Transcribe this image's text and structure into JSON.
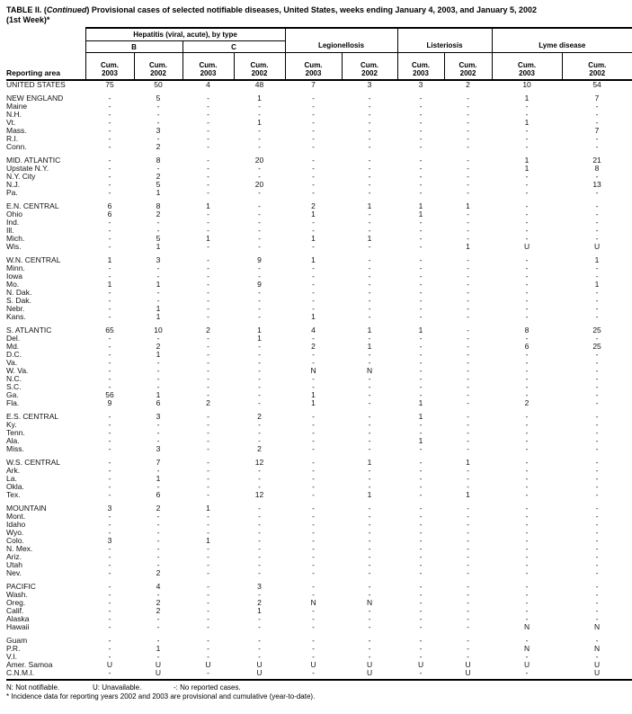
{
  "title": {
    "prefix": "TABLE II. (",
    "continued": "Continued",
    "suffix": ") Provisional cases of selected notifiable diseases, United States, weeks ending January 4, 2003, and January 5, 2002",
    "line2": "(1st Week)*"
  },
  "table": {
    "reporting_area_label": "Reporting area",
    "hepatitis_group": {
      "label": "Hepatitis (viral, acute), by type",
      "subtypes": [
        "B",
        "C"
      ]
    },
    "disease_groups": [
      "Legionellosis",
      "Listeriosis",
      "Lyme disease"
    ],
    "columns": [
      {
        "line1": "Cum.",
        "line2": "2003"
      },
      {
        "line1": "Cum.",
        "line2": "2002"
      },
      {
        "line1": "Cum.",
        "line2": "2003"
      },
      {
        "line1": "Cum.",
        "line2": "2002"
      },
      {
        "line1": "Cum.",
        "line2": "2003"
      },
      {
        "line1": "Cum.",
        "line2": "2002"
      },
      {
        "line1": "Cum.",
        "line2": "2003"
      },
      {
        "line1": "Cum.",
        "line2": "2002"
      },
      {
        "line1": "Cum.",
        "line2": "2003"
      },
      {
        "line1": "Cum.",
        "line2": "2002"
      }
    ],
    "rows": [
      {
        "area": "UNITED STATES",
        "gap_before": false,
        "values": [
          "75",
          "50",
          "4",
          "48",
          "7",
          "3",
          "3",
          "2",
          "10",
          "54"
        ]
      },
      {
        "area": "NEW ENGLAND",
        "gap_before": true,
        "values": [
          "-",
          "5",
          "-",
          "1",
          "-",
          "-",
          "-",
          "-",
          "1",
          "7"
        ]
      },
      {
        "area": "Maine",
        "gap_before": false,
        "values": [
          "-",
          "-",
          "-",
          "-",
          "-",
          "-",
          "-",
          "-",
          "-",
          "-"
        ]
      },
      {
        "area": "N.H.",
        "gap_before": false,
        "values": [
          "-",
          "-",
          "-",
          "-",
          "-",
          "-",
          "-",
          "-",
          "-",
          "-"
        ]
      },
      {
        "area": "Vt.",
        "gap_before": false,
        "values": [
          "-",
          "-",
          "-",
          "1",
          "-",
          "-",
          "-",
          "-",
          "1",
          "-"
        ]
      },
      {
        "area": "Mass.",
        "gap_before": false,
        "values": [
          "-",
          "3",
          "-",
          "-",
          "-",
          "-",
          "-",
          "-",
          "-",
          "7"
        ]
      },
      {
        "area": "R.I.",
        "gap_before": false,
        "values": [
          "-",
          "-",
          "-",
          "-",
          "-",
          "-",
          "-",
          "-",
          "-",
          "-"
        ]
      },
      {
        "area": "Conn.",
        "gap_before": false,
        "values": [
          "-",
          "2",
          "-",
          "-",
          "-",
          "-",
          "-",
          "-",
          "-",
          "-"
        ]
      },
      {
        "area": "MID. ATLANTIC",
        "gap_before": true,
        "values": [
          "-",
          "8",
          "-",
          "20",
          "-",
          "-",
          "-",
          "-",
          "1",
          "21"
        ]
      },
      {
        "area": "Upstate N.Y.",
        "gap_before": false,
        "values": [
          "-",
          "-",
          "-",
          "-",
          "-",
          "-",
          "-",
          "-",
          "1",
          "8"
        ]
      },
      {
        "area": "N.Y. City",
        "gap_before": false,
        "values": [
          "-",
          "2",
          "-",
          "-",
          "-",
          "-",
          "-",
          "-",
          "-",
          "-"
        ]
      },
      {
        "area": "N.J.",
        "gap_before": false,
        "values": [
          "-",
          "5",
          "-",
          "20",
          "-",
          "-",
          "-",
          "-",
          "-",
          "13"
        ]
      },
      {
        "area": "Pa.",
        "gap_before": false,
        "values": [
          "-",
          "1",
          "-",
          "-",
          "-",
          "-",
          "-",
          "-",
          "-",
          "-"
        ]
      },
      {
        "area": "E.N. CENTRAL",
        "gap_before": true,
        "values": [
          "6",
          "8",
          "1",
          "-",
          "2",
          "1",
          "1",
          "1",
          "-",
          "-"
        ]
      },
      {
        "area": "Ohio",
        "gap_before": false,
        "values": [
          "6",
          "2",
          "-",
          "-",
          "1",
          "-",
          "1",
          "-",
          "-",
          "-"
        ]
      },
      {
        "area": "Ind.",
        "gap_before": false,
        "values": [
          "-",
          "-",
          "-",
          "-",
          "-",
          "-",
          "-",
          "-",
          "-",
          "-"
        ]
      },
      {
        "area": "Ill.",
        "gap_before": false,
        "values": [
          "-",
          "-",
          "-",
          "-",
          "-",
          "-",
          "-",
          "-",
          "-",
          "-"
        ]
      },
      {
        "area": "Mich.",
        "gap_before": false,
        "values": [
          "-",
          "5",
          "1",
          "-",
          "1",
          "1",
          "-",
          "-",
          "-",
          "-"
        ]
      },
      {
        "area": "Wis.",
        "gap_before": false,
        "values": [
          "-",
          "1",
          "-",
          "-",
          "-",
          "-",
          "-",
          "1",
          "U",
          "U"
        ]
      },
      {
        "area": "W.N. CENTRAL",
        "gap_before": true,
        "values": [
          "1",
          "3",
          "-",
          "9",
          "1",
          "-",
          "-",
          "-",
          "-",
          "1"
        ]
      },
      {
        "area": "Minn.",
        "gap_before": false,
        "values": [
          "-",
          "-",
          "-",
          "-",
          "-",
          "-",
          "-",
          "-",
          "-",
          "-"
        ]
      },
      {
        "area": "Iowa",
        "gap_before": false,
        "values": [
          "-",
          "-",
          "-",
          "-",
          "-",
          "-",
          "-",
          "-",
          "-",
          "-"
        ]
      },
      {
        "area": "Mo.",
        "gap_before": false,
        "values": [
          "1",
          "1",
          "-",
          "9",
          "-",
          "-",
          "-",
          "-",
          "-",
          "1"
        ]
      },
      {
        "area": "N. Dak.",
        "gap_before": false,
        "values": [
          "-",
          "-",
          "-",
          "-",
          "-",
          "-",
          "-",
          "-",
          "-",
          "-"
        ]
      },
      {
        "area": "S. Dak.",
        "gap_before": false,
        "values": [
          "-",
          "-",
          "-",
          "-",
          "-",
          "-",
          "-",
          "-",
          "-",
          "-"
        ]
      },
      {
        "area": "Nebr.",
        "gap_before": false,
        "values": [
          "-",
          "1",
          "-",
          "-",
          "-",
          "-",
          "-",
          "-",
          "-",
          "-"
        ]
      },
      {
        "area": "Kans.",
        "gap_before": false,
        "values": [
          "-",
          "1",
          "-",
          "-",
          "1",
          "-",
          "-",
          "-",
          "-",
          "-"
        ]
      },
      {
        "area": "S. ATLANTIC",
        "gap_before": true,
        "values": [
          "65",
          "10",
          "2",
          "1",
          "4",
          "1",
          "1",
          "-",
          "8",
          "25"
        ]
      },
      {
        "area": "Del.",
        "gap_before": false,
        "values": [
          "-",
          "-",
          "-",
          "1",
          "-",
          "-",
          "-",
          "-",
          "-",
          "-"
        ]
      },
      {
        "area": "Md.",
        "gap_before": false,
        "values": [
          "-",
          "2",
          "-",
          "-",
          "2",
          "1",
          "-",
          "-",
          "6",
          "25"
        ]
      },
      {
        "area": "D.C.",
        "gap_before": false,
        "values": [
          "-",
          "1",
          "-",
          "-",
          "-",
          "-",
          "-",
          "-",
          "-",
          "-"
        ]
      },
      {
        "area": "Va.",
        "gap_before": false,
        "values": [
          "-",
          "-",
          "-",
          "-",
          "-",
          "-",
          "-",
          "-",
          "-",
          "-"
        ]
      },
      {
        "area": "W. Va.",
        "gap_before": false,
        "values": [
          "-",
          "-",
          "-",
          "-",
          "N",
          "N",
          "-",
          "-",
          "-",
          "-"
        ]
      },
      {
        "area": "N.C.",
        "gap_before": false,
        "values": [
          "-",
          "-",
          "-",
          "-",
          "-",
          "-",
          "-",
          "-",
          "-",
          "-"
        ]
      },
      {
        "area": "S.C.",
        "gap_before": false,
        "values": [
          "-",
          "-",
          "-",
          "-",
          "-",
          "-",
          "-",
          "-",
          "-",
          "-"
        ]
      },
      {
        "area": "Ga.",
        "gap_before": false,
        "values": [
          "56",
          "1",
          "-",
          "-",
          "1",
          "-",
          "-",
          "-",
          "-",
          "-"
        ]
      },
      {
        "area": "Fla.",
        "gap_before": false,
        "values": [
          "9",
          "6",
          "2",
          "-",
          "1",
          "-",
          "1",
          "-",
          "2",
          "-"
        ]
      },
      {
        "area": "E.S. CENTRAL",
        "gap_before": true,
        "values": [
          "-",
          "3",
          "-",
          "2",
          "-",
          "-",
          "1",
          "-",
          "-",
          "-"
        ]
      },
      {
        "area": "Ky.",
        "gap_before": false,
        "values": [
          "-",
          "-",
          "-",
          "-",
          "-",
          "-",
          "-",
          "-",
          "-",
          "-"
        ]
      },
      {
        "area": "Tenn.",
        "gap_before": false,
        "values": [
          "-",
          "-",
          "-",
          "-",
          "-",
          "-",
          "-",
          "-",
          "-",
          "-"
        ]
      },
      {
        "area": "Ala.",
        "gap_before": false,
        "values": [
          "-",
          "-",
          "-",
          "-",
          "-",
          "-",
          "1",
          "-",
          "-",
          "-"
        ]
      },
      {
        "area": "Miss.",
        "gap_before": false,
        "values": [
          "-",
          "3",
          "-",
          "2",
          "-",
          "-",
          "-",
          "-",
          "-",
          "-"
        ]
      },
      {
        "area": "W.S. CENTRAL",
        "gap_before": true,
        "values": [
          "-",
          "7",
          "-",
          "12",
          "-",
          "1",
          "-",
          "1",
          "-",
          "-"
        ]
      },
      {
        "area": "Ark.",
        "gap_before": false,
        "values": [
          "-",
          "-",
          "-",
          "-",
          "-",
          "-",
          "-",
          "-",
          "-",
          "-"
        ]
      },
      {
        "area": "La.",
        "gap_before": false,
        "values": [
          "-",
          "1",
          "-",
          "-",
          "-",
          "-",
          "-",
          "-",
          "-",
          "-"
        ]
      },
      {
        "area": "Okla.",
        "gap_before": false,
        "values": [
          "-",
          "-",
          "-",
          "-",
          "-",
          "-",
          "-",
          "-",
          "-",
          "-"
        ]
      },
      {
        "area": "Tex.",
        "gap_before": false,
        "values": [
          "-",
          "6",
          "-",
          "12",
          "-",
          "1",
          "-",
          "1",
          "-",
          "-"
        ]
      },
      {
        "area": "MOUNTAIN",
        "gap_before": true,
        "values": [
          "3",
          "2",
          "1",
          "-",
          "-",
          "-",
          "-",
          "-",
          "-",
          "-"
        ]
      },
      {
        "area": "Mont.",
        "gap_before": false,
        "values": [
          "-",
          "-",
          "-",
          "-",
          "-",
          "-",
          "-",
          "-",
          "-",
          "-"
        ]
      },
      {
        "area": "Idaho",
        "gap_before": false,
        "values": [
          "-",
          "-",
          "-",
          "-",
          "-",
          "-",
          "-",
          "-",
          "-",
          "-"
        ]
      },
      {
        "area": "Wyo.",
        "gap_before": false,
        "values": [
          "-",
          "-",
          "-",
          "-",
          "-",
          "-",
          "-",
          "-",
          "-",
          "-"
        ]
      },
      {
        "area": "Colo.",
        "gap_before": false,
        "values": [
          "3",
          "-",
          "1",
          "-",
          "-",
          "-",
          "-",
          "-",
          "-",
          "-"
        ]
      },
      {
        "area": "N. Mex.",
        "gap_before": false,
        "values": [
          "-",
          "-",
          "-",
          "-",
          "-",
          "-",
          "-",
          "-",
          "-",
          "-"
        ]
      },
      {
        "area": "Ariz.",
        "gap_before": false,
        "values": [
          "-",
          "-",
          "-",
          "-",
          "-",
          "-",
          "-",
          "-",
          "-",
          "-"
        ]
      },
      {
        "area": "Utah",
        "gap_before": false,
        "values": [
          "-",
          "-",
          "-",
          "-",
          "-",
          "-",
          "-",
          "-",
          "-",
          "-"
        ]
      },
      {
        "area": "Nev.",
        "gap_before": false,
        "values": [
          "-",
          "2",
          "-",
          "-",
          "-",
          "-",
          "-",
          "-",
          "-",
          "-"
        ]
      },
      {
        "area": "PACIFIC",
        "gap_before": true,
        "values": [
          "-",
          "4",
          "-",
          "3",
          "-",
          "-",
          "-",
          "-",
          "-",
          "-"
        ]
      },
      {
        "area": "Wash.",
        "gap_before": false,
        "values": [
          "-",
          "-",
          "-",
          "-",
          "-",
          "-",
          "-",
          "-",
          "-",
          "-"
        ]
      },
      {
        "area": "Oreg.",
        "gap_before": false,
        "values": [
          "-",
          "2",
          "-",
          "2",
          "N",
          "N",
          "-",
          "-",
          "-",
          "-"
        ]
      },
      {
        "area": "Calif.",
        "gap_before": false,
        "values": [
          "-",
          "2",
          "-",
          "1",
          "-",
          "-",
          "-",
          "-",
          "-",
          "-"
        ]
      },
      {
        "area": "Alaska",
        "gap_before": false,
        "values": [
          "-",
          "-",
          "-",
          "-",
          "-",
          "-",
          "-",
          "-",
          "-",
          "-"
        ]
      },
      {
        "area": "Hawaii",
        "gap_before": false,
        "values": [
          "-",
          "-",
          "-",
          "-",
          "-",
          "-",
          "-",
          "-",
          "N",
          "N"
        ]
      },
      {
        "area": "Guam",
        "gap_before": true,
        "values": [
          "-",
          "-",
          "-",
          "-",
          "-",
          "-",
          "-",
          "-",
          "-",
          "-"
        ]
      },
      {
        "area": "P.R.",
        "gap_before": false,
        "values": [
          "-",
          "1",
          "-",
          "-",
          "-",
          "-",
          "-",
          "-",
          "N",
          "N"
        ]
      },
      {
        "area": "V.I.",
        "gap_before": false,
        "values": [
          "-",
          "-",
          "-",
          "-",
          "-",
          "-",
          "-",
          "-",
          "-",
          "-"
        ]
      },
      {
        "area": "Amer. Samoa",
        "gap_before": false,
        "values": [
          "U",
          "U",
          "U",
          "U",
          "U",
          "U",
          "U",
          "U",
          "U",
          "U"
        ]
      },
      {
        "area": "C.N.M.I.",
        "gap_before": false,
        "values": [
          "-",
          "U",
          "-",
          "U",
          "-",
          "U",
          "-",
          "U",
          "-",
          "U"
        ]
      }
    ]
  },
  "footnotes": {
    "legend": [
      "N: Not notifiable.",
      "U: Unavailable.",
      "-: No reported cases."
    ],
    "note": "* Incidence data for reporting years 2002 and 2003 are provisional and cumulative (year-to-date)."
  }
}
